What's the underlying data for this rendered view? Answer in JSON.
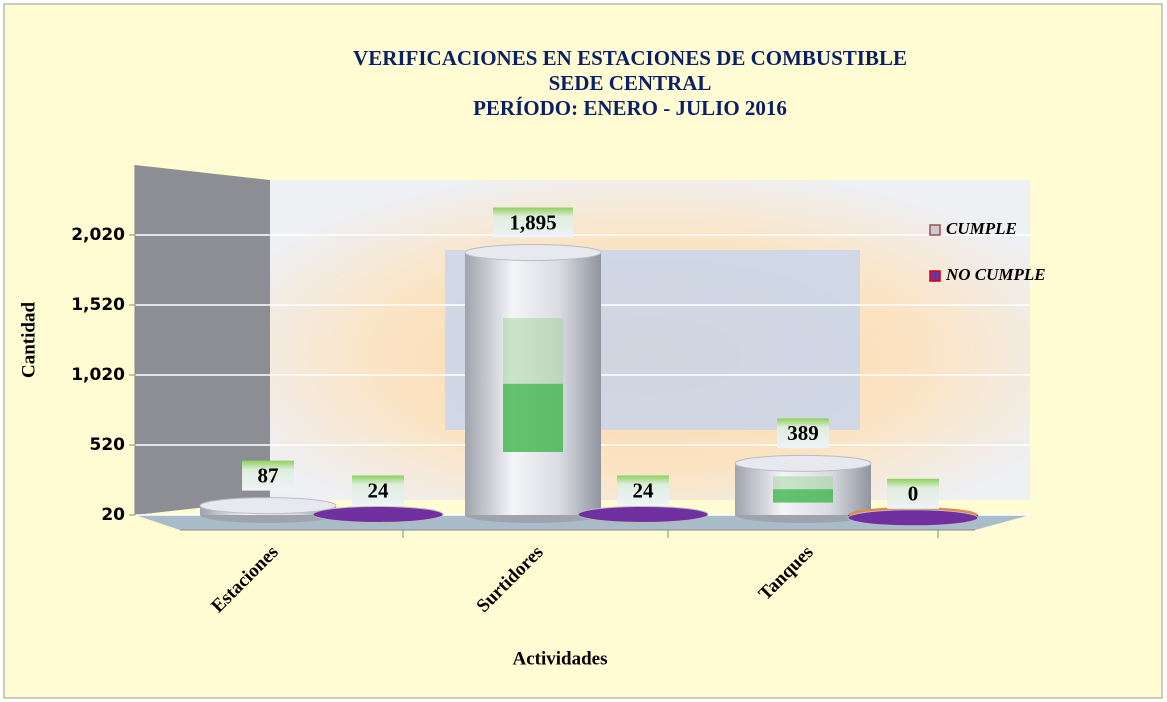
{
  "chart_data": {
    "type": "bar",
    "title": [
      "VERIFICACIONES EN ESTACIONES DE COMBUSTIBLE",
      "SEDE CENTRAL",
      "PERÍODO: ENERO - JULIO  2016"
    ],
    "x_label": "Actividades",
    "y_label": "Cantidad",
    "categories": [
      "Estaciones",
      "Surtidores",
      "Tanques"
    ],
    "series": [
      {
        "name": "CUMPLE",
        "color": "#c9ccd4",
        "values": [
          87,
          1895,
          389
        ],
        "value_labels": [
          "87",
          "1,895",
          "389"
        ]
      },
      {
        "name": "NO CUMPLE",
        "color": "#7030a0",
        "values": [
          24,
          24,
          0
        ]
      }
    ],
    "ylim": [
      20,
      2520
    ],
    "yticks": [
      20,
      520,
      {
        "value": 1020,
        "label": "1,020"
      },
      {
        "value": 1520,
        "label": "1,520"
      },
      {
        "value": 2020,
        "label": "2,020"
      }
    ],
    "grid": true,
    "legend": "upper right"
  }
}
